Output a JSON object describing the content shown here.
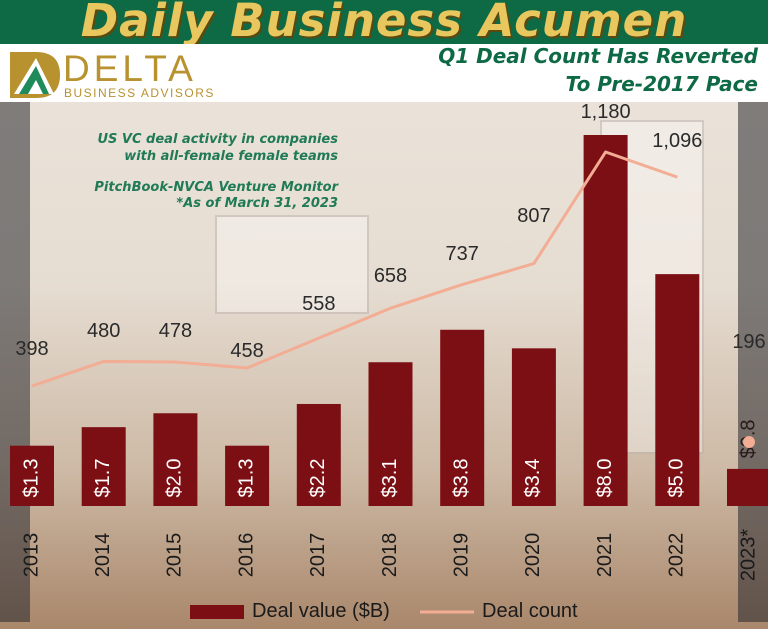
{
  "header": {
    "headline": "Daily Business Acumen",
    "subtitle_line1": "Q1 Deal Count Has Reverted",
    "subtitle_line2": "To Pre-2017 Pace"
  },
  "logo": {
    "name": "DELTA",
    "tagline": "BUSINESS ADVISORS"
  },
  "notes": {
    "line1": "US VC deal activity in companies",
    "line2": "with all-female female teams",
    "line3": "PitchBook-NVCA Venture Monitor",
    "line4": "*As of March 31, 2023"
  },
  "colors": {
    "bar": "#7c0f14",
    "line": "#f2ad94",
    "header_bg": "#0e6a45",
    "headline": "#e8c75e",
    "logo_gold": "#b8922f"
  },
  "chart_data": {
    "type": "bar",
    "categories": [
      "2013",
      "2014",
      "2015",
      "2016",
      "2017",
      "2018",
      "2019",
      "2020",
      "2021",
      "2022",
      "2023*"
    ],
    "series": [
      {
        "name": "Deal value ($B)",
        "type": "bar",
        "values": [
          1.3,
          1.7,
          2.0,
          1.3,
          2.2,
          3.1,
          3.8,
          3.4,
          8.0,
          5.0,
          0.8
        ],
        "labels": [
          "$1.3",
          "$1.7",
          "$2.0",
          "$1.3",
          "$2.2",
          "$3.1",
          "$3.8",
          "$3.4",
          "$8.0",
          "$5.0",
          "$0.8"
        ]
      },
      {
        "name": "Deal count",
        "type": "line",
        "values": [
          398,
          480,
          478,
          458,
          558,
          658,
          737,
          807,
          1180,
          1096,
          196
        ],
        "labels": [
          "398",
          "480",
          "478",
          "458",
          "558",
          "658",
          "737",
          "807",
          "1,180",
          "1,096",
          "196"
        ]
      }
    ],
    "legend": [
      "Deal value ($B)",
      "Deal count"
    ],
    "legend_position": "bottom",
    "grid": false
  }
}
